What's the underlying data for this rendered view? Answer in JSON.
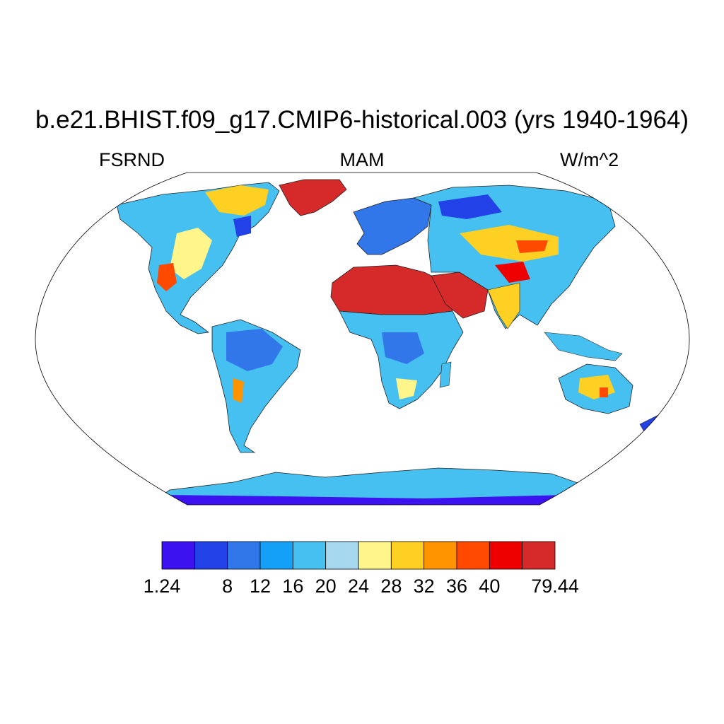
{
  "title": "b.e21.BHIST.f09_g17.CMIP6-historical.003 (yrs 1940-1964)",
  "left_label": "FSRND",
  "center_label": "MAM",
  "right_label": "W/m^2",
  "colorbar": {
    "colors": [
      "#3c12f0",
      "#2241e6",
      "#3277ea",
      "#14a0f7",
      "#46c0f0",
      "#a6d8f0",
      "#fff58a",
      "#ffd024",
      "#ff9400",
      "#ff4a00",
      "#ee0000",
      "#d62a2a"
    ],
    "labels": [
      "1.24",
      "8",
      "12",
      "16",
      "20",
      "24",
      "28",
      "32",
      "36",
      "40",
      "79.44"
    ]
  },
  "map": {
    "projection": "Robinson",
    "land_fill_by_region": [
      {
        "region": "Greenland",
        "color": "#d62a2a"
      },
      {
        "region": "Sahara",
        "color": "#d62a2a"
      },
      {
        "region": "Arabian Peninsula",
        "color": "#d62a2a"
      },
      {
        "region": "Tibetan Plateau",
        "color": "#ee0000"
      },
      {
        "region": "Antarctica",
        "color": "#46c0f0"
      },
      {
        "region": "Amazon",
        "color": "#3277ea"
      }
    ]
  }
}
